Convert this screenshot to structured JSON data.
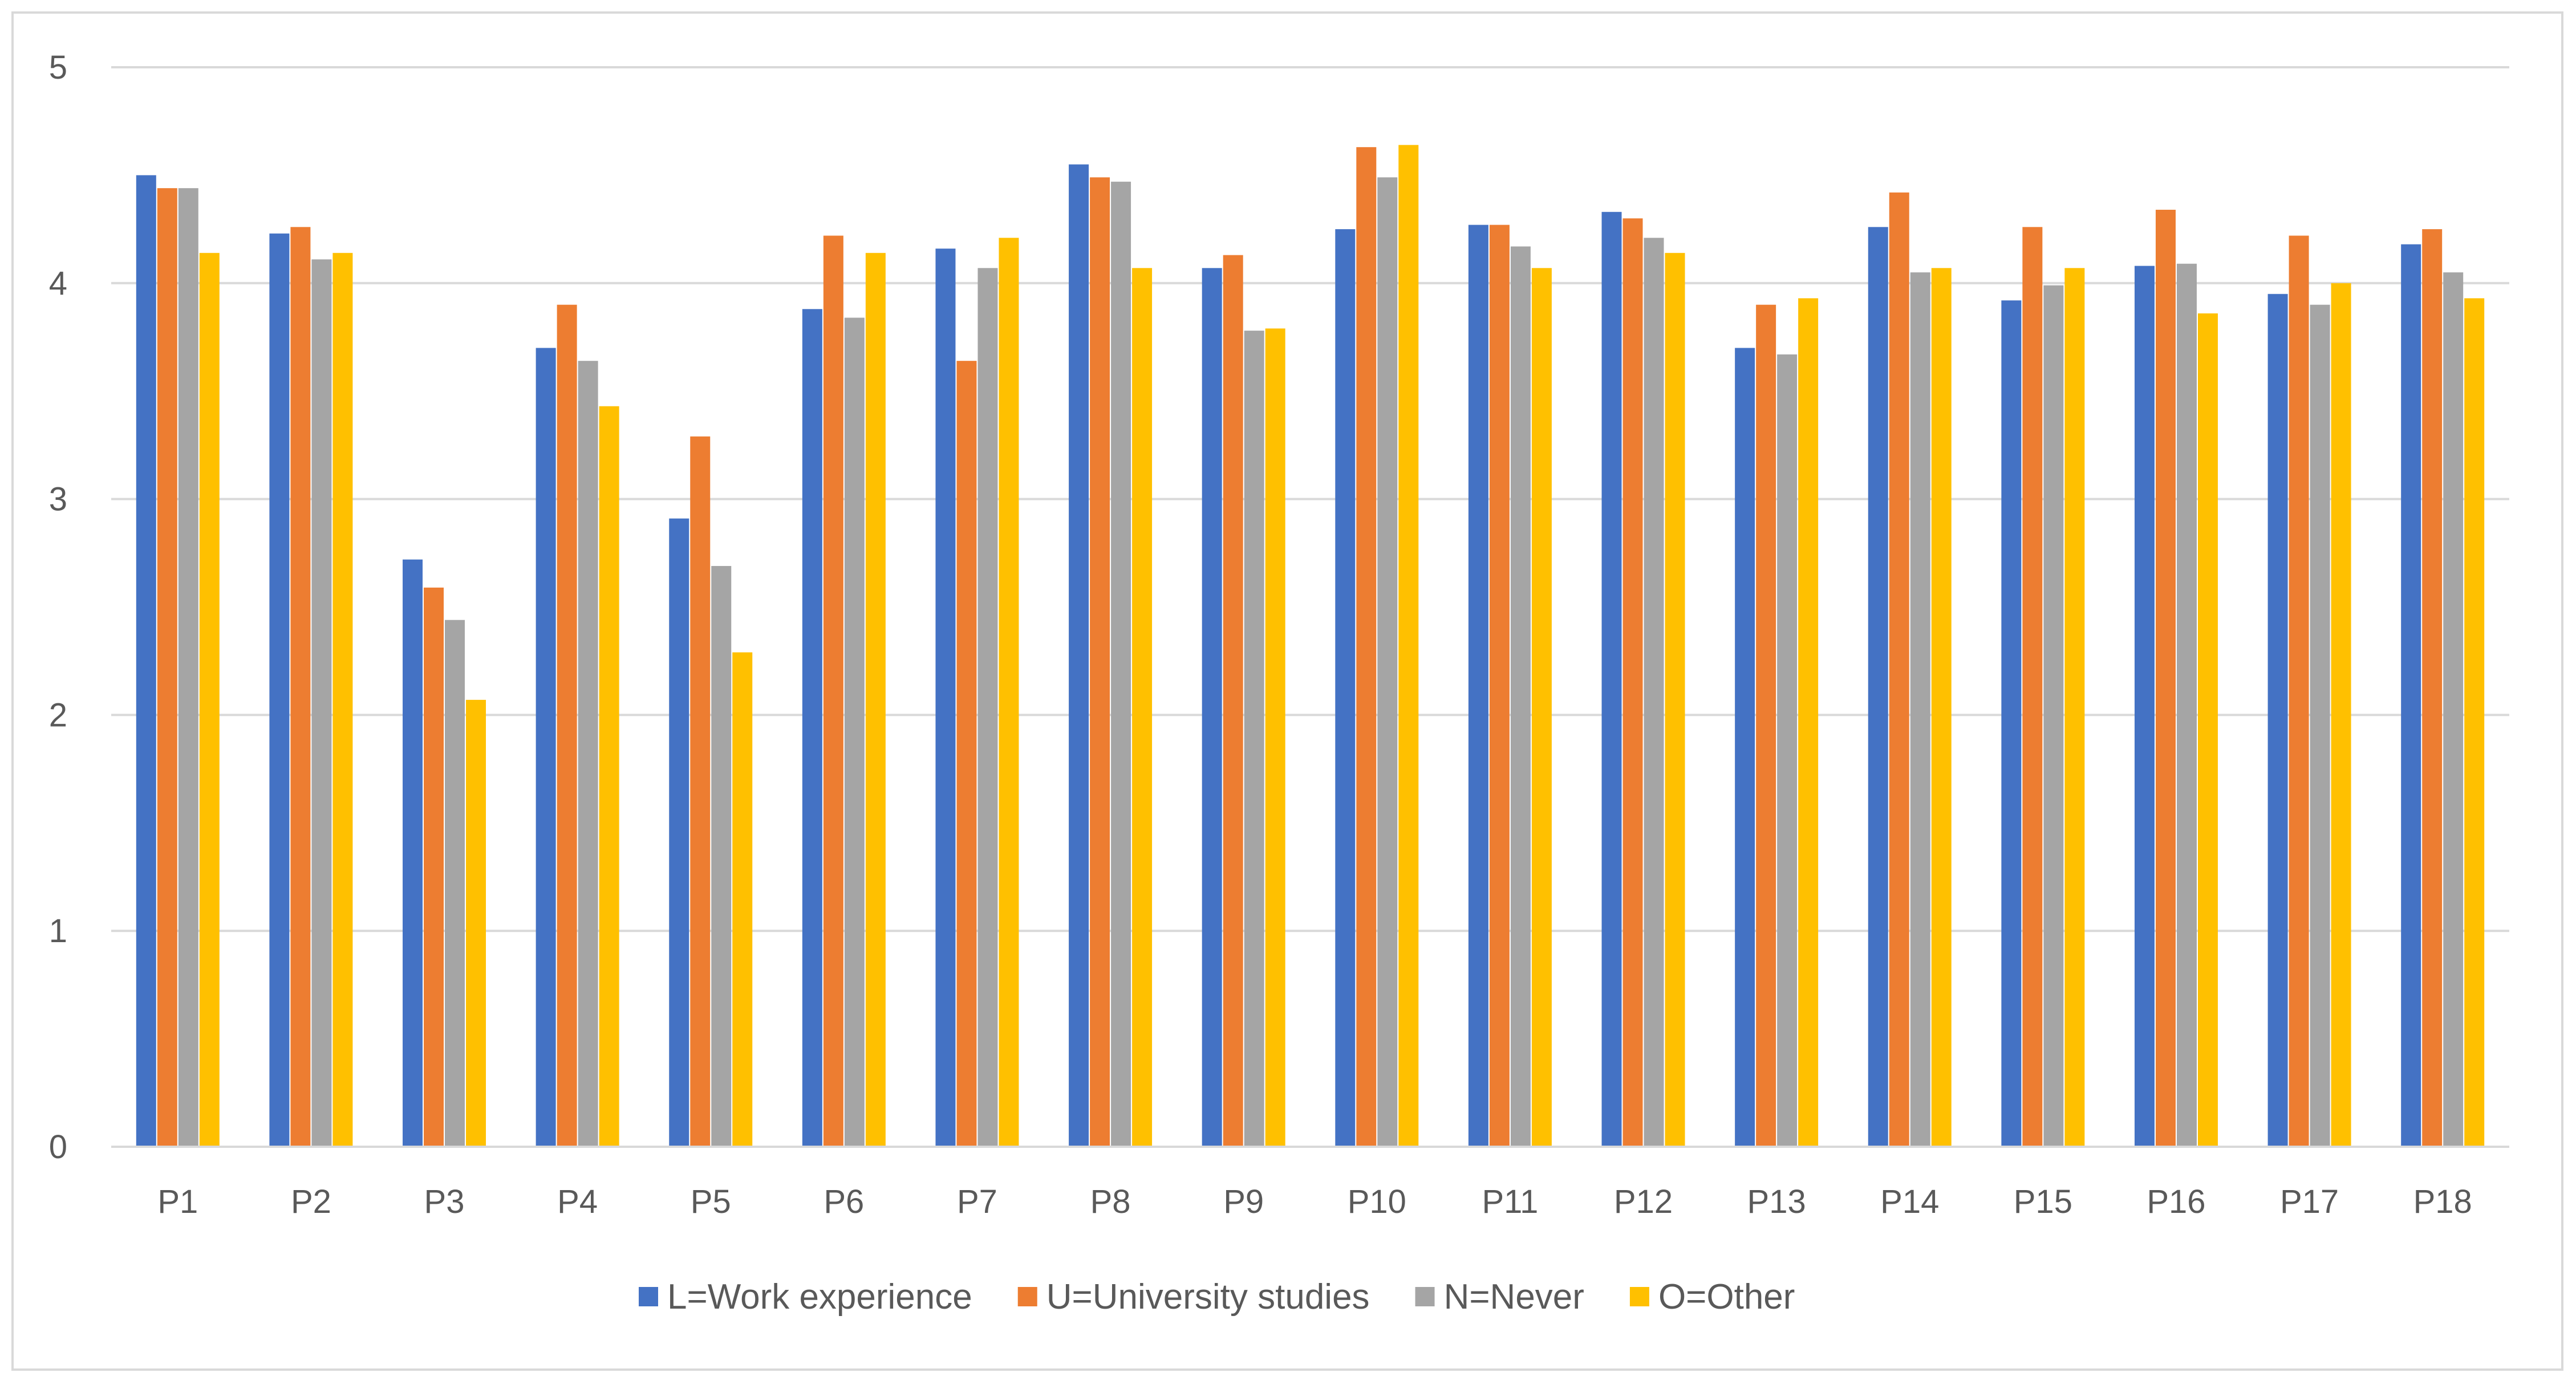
{
  "chart_data": {
    "type": "bar",
    "title": "",
    "xlabel": "",
    "ylabel": "",
    "ylim": [
      0,
      5
    ],
    "yticks": [
      0,
      1,
      2,
      3,
      4,
      5
    ],
    "grid": true,
    "legend_position": "bottom",
    "categories": [
      "P1",
      "P2",
      "P3",
      "P4",
      "P5",
      "P6",
      "P7",
      "P8",
      "P9",
      "P10",
      "P11",
      "P12",
      "P13",
      "P14",
      "P15",
      "P16",
      "P17",
      "P18"
    ],
    "series": [
      {
        "name": "L=Work experience",
        "color": "#4472c4",
        "values": [
          4.5,
          4.23,
          2.72,
          3.7,
          2.91,
          3.88,
          4.16,
          4.55,
          4.07,
          4.25,
          4.27,
          4.33,
          3.7,
          4.26,
          3.92,
          4.08,
          3.95,
          4.18
        ]
      },
      {
        "name": "U=University studies",
        "color": "#ed7d31",
        "values": [
          4.44,
          4.26,
          2.59,
          3.9,
          3.29,
          4.22,
          3.64,
          4.49,
          4.13,
          4.63,
          4.27,
          4.3,
          3.9,
          4.42,
          4.26,
          4.34,
          4.22,
          4.25
        ]
      },
      {
        "name": "N=Never",
        "color": "#a5a5a5",
        "values": [
          4.44,
          4.11,
          2.44,
          3.64,
          2.69,
          3.84,
          4.07,
          4.47,
          3.78,
          4.49,
          4.17,
          4.21,
          3.67,
          4.05,
          3.99,
          4.09,
          3.9,
          4.05
        ]
      },
      {
        "name": "O=Other",
        "color": "#ffc000",
        "values": [
          4.14,
          4.14,
          2.07,
          3.43,
          2.29,
          4.14,
          4.21,
          4.07,
          3.79,
          4.64,
          4.07,
          4.14,
          3.93,
          4.07,
          4.07,
          3.86,
          4.0,
          3.93
        ]
      }
    ]
  }
}
